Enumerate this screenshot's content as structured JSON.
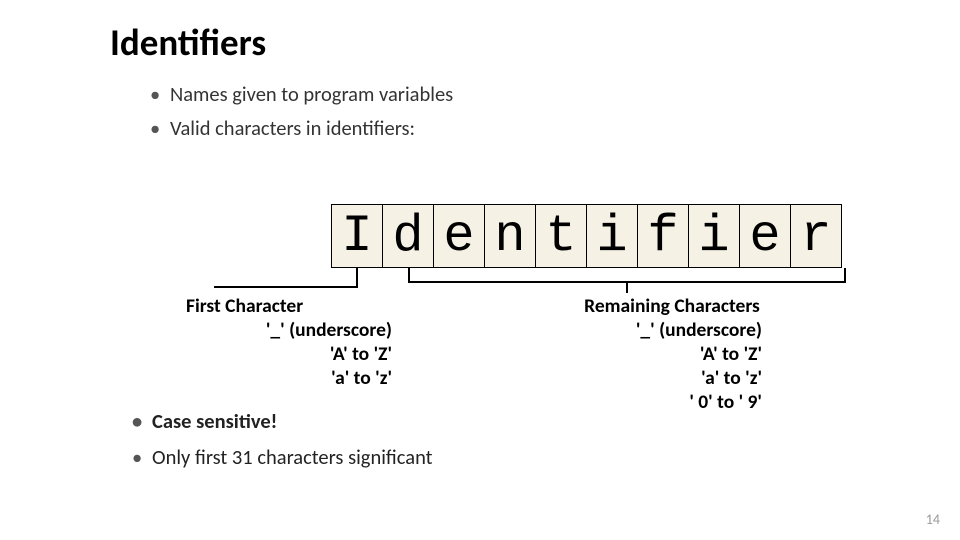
{
  "title": "Identifiers",
  "bullet1": "Names given to program variables",
  "bullet2": "Valid characters in identifiers:",
  "cells": {
    "c0": "I",
    "c1": "d",
    "c2": "e",
    "c3": "n",
    "c4": "t",
    "c5": "i",
    "c6": "f",
    "c7": "i",
    "c8": "e",
    "c9": "r"
  },
  "first": {
    "header": "First Character",
    "r1": "'_' (underscore)",
    "r2": "'A' to 'Z'",
    "r3": "'a' to 'z'"
  },
  "remaining": {
    "header": "Remaining Characters",
    "r1": "'_' (underscore)",
    "r2": "'A' to 'Z'",
    "r3": "'a' to 'z'",
    "r4": "' 0' to ' 9'"
  },
  "bullet3": "Case sensitive!",
  "bullet4": "Only first 31 characters significant",
  "pagenum": "14",
  "style": {
    "cell_bg": "#f5f1e4",
    "cell_border": "#000000",
    "title_fontsize": 37,
    "body_fontsize": 20.5,
    "mono_fontsize": 52
  }
}
